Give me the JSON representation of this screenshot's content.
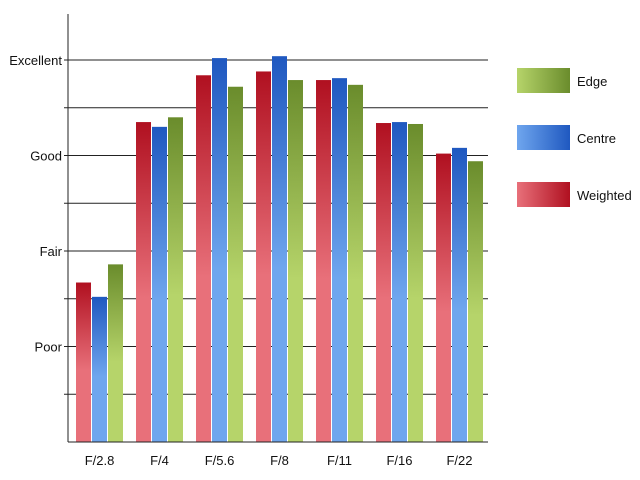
{
  "chart_data": {
    "type": "bar",
    "categories": [
      "F/2.8",
      "F/4",
      "F/5.6",
      "F/8",
      "F/11",
      "F/16",
      "F/22"
    ],
    "y_ticks": [
      {
        "value": 1,
        "label": "Poor"
      },
      {
        "value": 2,
        "label": "Fair"
      },
      {
        "value": 3,
        "label": "Good"
      },
      {
        "value": 4,
        "label": "Excellent"
      }
    ],
    "ylim": [
      0,
      4
    ],
    "grid": true,
    "legend_position": "right",
    "series": [
      {
        "name": "Weighted",
        "values": [
          1.67,
          3.35,
          3.84,
          3.88,
          3.79,
          3.34,
          3.02
        ],
        "color_light": "#e8707a",
        "color_dark": "#b01020"
      },
      {
        "name": "Centre",
        "values": [
          1.52,
          3.3,
          4.02,
          4.04,
          3.81,
          3.35,
          3.08
        ],
        "color_light": "#6fa6ee",
        "color_dark": "#1f58c0"
      },
      {
        "name": "Edge",
        "values": [
          1.86,
          3.4,
          3.72,
          3.79,
          3.74,
          3.33,
          2.94
        ],
        "color_light": "#b6d46a",
        "color_dark": "#6a8c2c"
      }
    ],
    "legend_order": [
      "Edge",
      "Centre",
      "Weighted"
    ]
  }
}
